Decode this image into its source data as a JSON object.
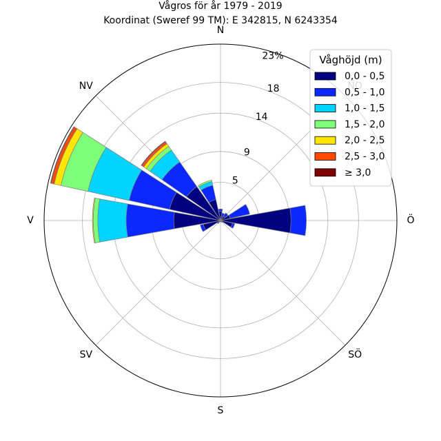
{
  "chart_data": {
    "type": "wind-rose",
    "title": "Vågros för år 1979 - 2019",
    "subtitle": "Koordinat (Sweref 99 TM): E 342815, N 6243354",
    "r_max": 23,
    "r_max_label": "23%",
    "ring_values": [
      5,
      9,
      14,
      18
    ],
    "ring_labels": [
      "5",
      "9",
      "14",
      "18"
    ],
    "grid": true,
    "legend_position": "top-right",
    "legend_title": "Våghöjd (m)",
    "direction_labels": [
      "N",
      "NO",
      "Ö",
      "SÖ",
      "S",
      "SV",
      "V",
      "NV"
    ],
    "categories": [
      "N",
      "NNO",
      "NO",
      "ONO",
      "Ö",
      "OSO",
      "SO",
      "SSO",
      "S",
      "SSV",
      "SV",
      "VSV",
      "V",
      "VNV",
      "NV",
      "NNV"
    ],
    "series": [
      {
        "name": "0,0 - 0,5",
        "color": "#000080",
        "values": [
          1.2,
          0.5,
          0.7,
          1.3,
          9.2,
          1.6,
          0.3,
          0.2,
          0.2,
          0.2,
          0.3,
          2.3,
          6.1,
          6.8,
          5.4,
          2.8
        ]
      },
      {
        "name": "0,5 - 1,0",
        "color": "#0a28ff",
        "values": [
          0.3,
          0.5,
          0.5,
          2.6,
          2.0,
          0.3,
          0.0,
          0.0,
          0.0,
          0.0,
          0.2,
          0.4,
          6.2,
          5.4,
          3.9,
          1.9
        ]
      },
      {
        "name": "1,0 - 1,5",
        "color": "#00d4ff",
        "values": [
          0.0,
          0.0,
          0.0,
          0.0,
          0.0,
          0.0,
          0.0,
          0.0,
          0.0,
          0.0,
          0.0,
          0.0,
          3.7,
          5.5,
          1.9,
          0.5
        ]
      },
      {
        "name": "1,5 - 2,0",
        "color": "#7dff7a",
        "values": [
          0.0,
          0.0,
          0.0,
          0.0,
          0.0,
          0.0,
          0.0,
          0.0,
          0.0,
          0.0,
          0.0,
          0.0,
          0.6,
          3.6,
          0.6,
          0.2
        ]
      },
      {
        "name": "2,0 - 2,5",
        "color": "#ffe600",
        "values": [
          0.0,
          0.0,
          0.0,
          0.0,
          0.0,
          0.0,
          0.0,
          0.0,
          0.0,
          0.0,
          0.0,
          0.0,
          0.1,
          0.9,
          0.4,
          0.0
        ]
      },
      {
        "name": "2,5 - 3,0",
        "color": "#ff4a00",
        "values": [
          0.0,
          0.0,
          0.0,
          0.0,
          0.0,
          0.0,
          0.0,
          0.0,
          0.0,
          0.0,
          0.0,
          0.0,
          0.0,
          0.4,
          0.3,
          0.0
        ]
      },
      {
        "name": "≥ 3,0",
        "color": "#800000",
        "values": [
          0.0,
          0.0,
          0.0,
          0.0,
          0.0,
          0.0,
          0.0,
          0.0,
          0.0,
          0.0,
          0.0,
          0.0,
          0.0,
          0.1,
          0.1,
          0.0
        ]
      }
    ]
  }
}
